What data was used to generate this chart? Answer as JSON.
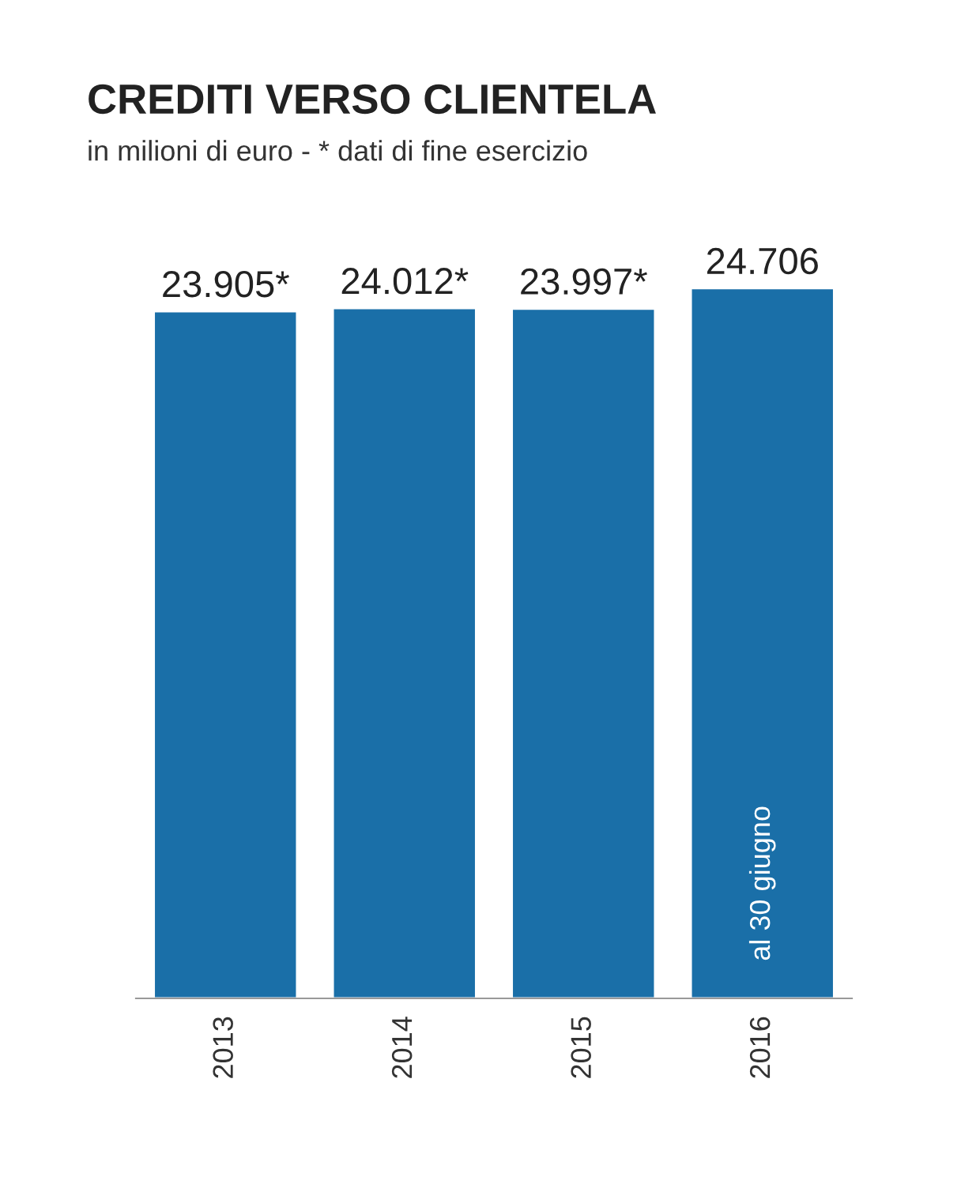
{
  "chart_data": {
    "type": "bar",
    "title": "CREDITI VERSO CLIENTELA",
    "subtitle": "in milioni di euro - * dati di fine esercizio",
    "categories": [
      "2013",
      "2014",
      "2015",
      "2016"
    ],
    "values": [
      23905,
      24012,
      23997,
      24706
    ],
    "value_labels": [
      "23.905*",
      "24.012*",
      "23.997*",
      "24.706"
    ],
    "color": "#1a6fa8",
    "tick_labels": "x",
    "grid": false,
    "legend": false,
    "annotations": [
      "al 30 giugno"
    ]
  }
}
